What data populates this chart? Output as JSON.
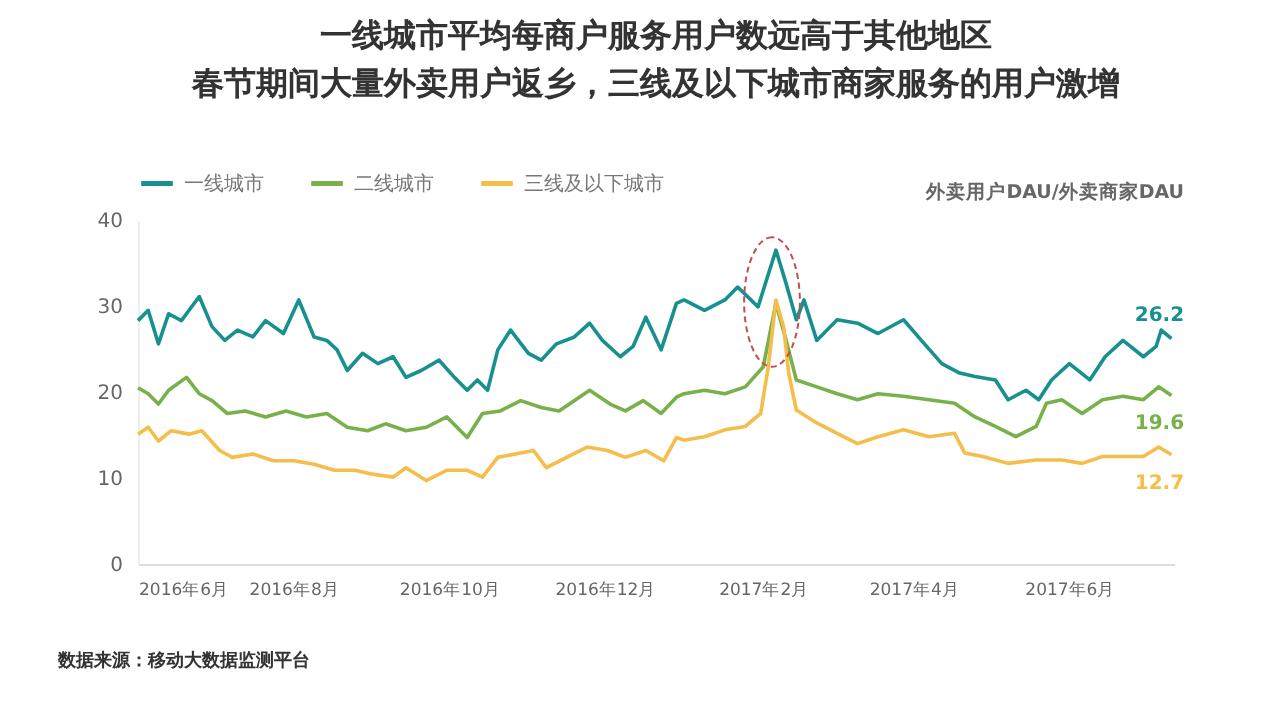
{
  "chart_data": {
    "type": "line",
    "title": [
      "一线城市平均每商户服务用户数远高于其他地区",
      "春节期间大量外卖用户返乡，三线及以下城市商家服务的用户激增"
    ],
    "ylabel": "外卖用户DAU/外卖商家DAU",
    "annotations": [
      "数据来源：移动大数据监测平台"
    ],
    "xlim": [
      "2016-06-01",
      "2017-07-12"
    ],
    "xticks": [
      {
        "value": "2016-06-01",
        "label": "2016年6月"
      },
      {
        "value": "2016-08-01",
        "label": "2016年8月"
      },
      {
        "value": "2016-10-01",
        "label": "2016年10月"
      },
      {
        "value": "2016-12-01",
        "label": "2016年12月"
      },
      {
        "value": "2017-02-01",
        "label": "2017年2月"
      },
      {
        "value": "2017-04-01",
        "label": "2017年4月"
      },
      {
        "value": "2017-06-01",
        "label": "2017年6月"
      }
    ],
    "ylim": [
      0,
      40
    ],
    "yticks": [
      0,
      10,
      20,
      30,
      40
    ],
    "grid": false,
    "legend": "top left",
    "marker": "none",
    "line_style": "solid",
    "series": [
      {
        "name": "一线城市",
        "color": "#17908f",
        "x": [
          "2016-06-01",
          "2016-06-05",
          "2016-06-09",
          "2016-06-13",
          "2016-06-18",
          "2016-06-25",
          "2016-06-30",
          "2016-07-05",
          "2016-07-10",
          "2016-07-16",
          "2016-07-21",
          "2016-07-28",
          "2016-08-03",
          "2016-08-09",
          "2016-08-14",
          "2016-08-18",
          "2016-08-22",
          "2016-08-28",
          "2016-09-03",
          "2016-09-09",
          "2016-09-14",
          "2016-09-20",
          "2016-09-27",
          "2016-10-03",
          "2016-10-08",
          "2016-10-12",
          "2016-10-16",
          "2016-10-20",
          "2016-10-25",
          "2016-11-01",
          "2016-11-06",
          "2016-11-12",
          "2016-11-19",
          "2016-11-25",
          "2016-11-30",
          "2016-12-07",
          "2016-12-12",
          "2016-12-17",
          "2016-12-23",
          "2016-12-29",
          "2017-01-01",
          "2017-01-09",
          "2017-01-17",
          "2017-01-22",
          "2017-01-30",
          "2017-02-06",
          "2017-02-10",
          "2017-02-14",
          "2017-02-17",
          "2017-02-22",
          "2017-03-02",
          "2017-03-10",
          "2017-03-18",
          "2017-03-28",
          "2017-04-04",
          "2017-04-12",
          "2017-04-19",
          "2017-04-25",
          "2017-05-03",
          "2017-05-08",
          "2017-05-15",
          "2017-05-20",
          "2017-05-25",
          "2017-06-01",
          "2017-06-09",
          "2017-06-15",
          "2017-06-22",
          "2017-06-30",
          "2017-07-05",
          "2017-07-07",
          "2017-07-11"
        ],
        "values": [
          28.3,
          29.5,
          25.6,
          29.1,
          28.3,
          31.1,
          27.6,
          26,
          27.2,
          26.4,
          28.3,
          26.8,
          30.7,
          26.4,
          26,
          24.9,
          22.5,
          24.5,
          23.3,
          24.1,
          21.7,
          22.5,
          23.7,
          21.7,
          20.2,
          21.4,
          20.2,
          24.9,
          27.2,
          24.5,
          23.7,
          25.6,
          26.4,
          28,
          26,
          24.1,
          25.3,
          28.7,
          24.9,
          30.3,
          30.7,
          29.5,
          30.7,
          32.2,
          29.9,
          36.5,
          32.6,
          28.4,
          30.7,
          26,
          28.4,
          28,
          26.8,
          28.4,
          26,
          23.3,
          22.2,
          21.8,
          21.4,
          19.1,
          20.2,
          19.1,
          21.4,
          23.3,
          21.4,
          24.1,
          26,
          24.1,
          25.3,
          27.2,
          26.2
        ],
        "value_labels": [
          null,
          null,
          null,
          null,
          null,
          null,
          null,
          null,
          null,
          null,
          null,
          null,
          null,
          null,
          null,
          null,
          null,
          null,
          null,
          null,
          null,
          null,
          null,
          null,
          null,
          null,
          null,
          null,
          null,
          null,
          null,
          null,
          null,
          null,
          null,
          null,
          null,
          null,
          null,
          null,
          null,
          null,
          null,
          null,
          null,
          null,
          null,
          null,
          null,
          null,
          null,
          null,
          null,
          null,
          null,
          null,
          null,
          null,
          null,
          null,
          null,
          null,
          null,
          null,
          null,
          null,
          null,
          null,
          null,
          null,
          "26.2"
        ]
      },
      {
        "name": "二线城市",
        "color": "#78b04a",
        "x": [
          "2016-06-01",
          "2016-06-05",
          "2016-06-09",
          "2016-06-13",
          "2016-06-20",
          "2016-06-25",
          "2016-06-30",
          "2016-07-06",
          "2016-07-13",
          "2016-07-21",
          "2016-07-29",
          "2016-08-06",
          "2016-08-14",
          "2016-08-22",
          "2016-08-30",
          "2016-09-06",
          "2016-09-14",
          "2016-09-22",
          "2016-09-30",
          "2016-10-08",
          "2016-10-14",
          "2016-10-21",
          "2016-10-29",
          "2016-11-06",
          "2016-11-13",
          "2016-11-25",
          "2016-12-03",
          "2016-12-09",
          "2016-12-16",
          "2016-12-23",
          "2016-12-29",
          "2017-01-01",
          "2017-01-09",
          "2017-01-17",
          "2017-01-25",
          "2017-02-01",
          "2017-02-06",
          "2017-02-10",
          "2017-02-14",
          "2017-02-22",
          "2017-03-02",
          "2017-03-10",
          "2017-03-18",
          "2017-03-28",
          "2017-04-07",
          "2017-04-17",
          "2017-04-25",
          "2017-05-03",
          "2017-05-11",
          "2017-05-19",
          "2017-05-23",
          "2017-05-29",
          "2017-06-06",
          "2017-06-14",
          "2017-06-22",
          "2017-06-30",
          "2017-07-06",
          "2017-07-11"
        ],
        "values": [
          20.5,
          19.8,
          18.6,
          20.2,
          21.7,
          19.8,
          19,
          17.5,
          17.8,
          17.1,
          17.8,
          17.1,
          17.5,
          15.9,
          15.5,
          16.3,
          15.5,
          15.9,
          17.1,
          14.7,
          17.5,
          17.8,
          19,
          18.2,
          17.8,
          20.2,
          18.6,
          17.8,
          19,
          17.5,
          19.4,
          19.8,
          20.2,
          19.8,
          20.6,
          22.9,
          30.3,
          26,
          21.4,
          20.6,
          19.8,
          19.1,
          19.8,
          19.5,
          19.1,
          18.7,
          17.1,
          16,
          14.8,
          16,
          18.7,
          19.1,
          17.5,
          19.1,
          19.5,
          19.1,
          20.6,
          19.6
        ],
        "value_labels": [
          null,
          null,
          null,
          null,
          null,
          null,
          null,
          null,
          null,
          null,
          null,
          null,
          null,
          null,
          null,
          null,
          null,
          null,
          null,
          null,
          null,
          null,
          null,
          null,
          null,
          null,
          null,
          null,
          null,
          null,
          null,
          null,
          null,
          null,
          null,
          null,
          null,
          null,
          null,
          null,
          null,
          null,
          null,
          null,
          null,
          null,
          null,
          null,
          null,
          null,
          null,
          null,
          null,
          null,
          null,
          null,
          null,
          "19.6"
        ]
      },
      {
        "name": "三线及以下城市",
        "color": "#f5bd4a",
        "x": [
          "2016-06-01",
          "2016-06-05",
          "2016-06-09",
          "2016-06-14",
          "2016-06-21",
          "2016-06-26",
          "2016-07-03",
          "2016-07-08",
          "2016-07-16",
          "2016-07-24",
          "2016-08-01",
          "2016-08-09",
          "2016-08-17",
          "2016-08-25",
          "2016-08-31",
          "2016-09-09",
          "2016-09-14",
          "2016-09-22",
          "2016-09-30",
          "2016-10-08",
          "2016-10-14",
          "2016-10-20",
          "2016-10-27",
          "2016-11-03",
          "2016-11-08",
          "2016-11-16",
          "2016-11-24",
          "2016-12-02",
          "2016-12-09",
          "2016-12-17",
          "2016-12-24",
          "2016-12-29",
          "2017-01-01",
          "2017-01-09",
          "2017-01-17",
          "2017-01-25",
          "2017-01-31",
          "2017-02-03",
          "2017-02-06",
          "2017-02-09",
          "2017-02-11",
          "2017-02-14",
          "2017-02-22",
          "2017-03-02",
          "2017-03-10",
          "2017-03-18",
          "2017-03-28",
          "2017-04-07",
          "2017-04-17",
          "2017-04-21",
          "2017-04-28",
          "2017-05-08",
          "2017-05-19",
          "2017-05-29",
          "2017-06-06",
          "2017-06-14",
          "2017-06-22",
          "2017-06-30",
          "2017-07-06",
          "2017-07-11"
        ],
        "values": [
          15.1,
          15.9,
          14.3,
          15.5,
          15.1,
          15.5,
          13.2,
          12.4,
          12.8,
          12,
          12,
          11.6,
          10.9,
          10.9,
          10.5,
          10.1,
          11.2,
          9.7,
          10.9,
          10.9,
          10.1,
          12.4,
          12.8,
          13.2,
          11.2,
          12.4,
          13.6,
          13.2,
          12.4,
          13.2,
          12,
          14.7,
          14.4,
          14.8,
          15.6,
          16,
          17.5,
          22.9,
          30.7,
          27.6,
          22.2,
          17.9,
          16.4,
          15.2,
          14,
          14.8,
          15.6,
          14.8,
          15.2,
          12.9,
          12.5,
          11.7,
          12.1,
          12.1,
          11.7,
          12.5,
          12.5,
          12.5,
          13.6,
          12.7
        ],
        "value_labels": [
          null,
          null,
          null,
          null,
          null,
          null,
          null,
          null,
          null,
          null,
          null,
          null,
          null,
          null,
          null,
          null,
          null,
          null,
          null,
          null,
          null,
          null,
          null,
          null,
          null,
          null,
          null,
          null,
          null,
          null,
          null,
          null,
          null,
          null,
          null,
          null,
          null,
          null,
          null,
          null,
          null,
          null,
          null,
          null,
          null,
          null,
          null,
          null,
          null,
          null,
          null,
          null,
          null,
          null,
          null,
          null,
          null,
          null,
          null,
          "12.7"
        ]
      }
    ]
  }
}
